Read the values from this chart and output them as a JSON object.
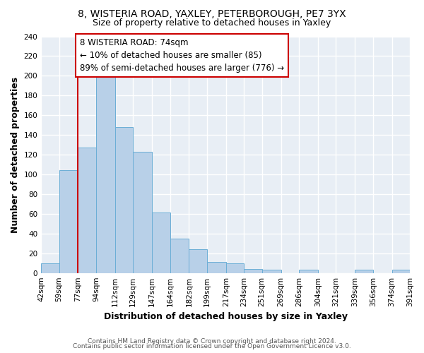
{
  "title1": "8, WISTERIA ROAD, YAXLEY, PETERBOROUGH, PE7 3YX",
  "title2": "Size of property relative to detached houses in Yaxley",
  "xlabel": "Distribution of detached houses by size in Yaxley",
  "ylabel": "Number of detached properties",
  "footer1": "Contains HM Land Registry data © Crown copyright and database right 2024.",
  "footer2": "Contains public sector information licensed under the Open Government Licence v3.0.",
  "annotation_line1": "8 WISTERIA ROAD: 74sqm",
  "annotation_line2": "← 10% of detached houses are smaller (85)",
  "annotation_line3": "89% of semi-detached houses are larger (776) →",
  "bar_edges": [
    42,
    59,
    77,
    94,
    112,
    129,
    147,
    164,
    182,
    199,
    217,
    234,
    251,
    269,
    286,
    304,
    321,
    339,
    356,
    374,
    391
  ],
  "bar_heights": [
    10,
    104,
    127,
    199,
    148,
    123,
    61,
    35,
    24,
    11,
    10,
    4,
    3,
    0,
    3,
    0,
    0,
    3,
    0,
    3
  ],
  "bar_color": "#b8d0e8",
  "bar_edgecolor": "#6baed6",
  "reference_line_x": 77,
  "reference_line_color": "#cc0000",
  "ylim": [
    0,
    240
  ],
  "yticks": [
    0,
    20,
    40,
    60,
    80,
    100,
    120,
    140,
    160,
    180,
    200,
    220,
    240
  ],
  "plot_bg_color": "#e8eef5",
  "fig_bg_color": "#ffffff",
  "grid_color": "#ffffff",
  "annotation_box_color": "#ffffff",
  "annotation_box_edgecolor": "#cc0000",
  "title_fontsize": 10,
  "subtitle_fontsize": 9,
  "axis_label_fontsize": 9,
  "tick_fontsize": 7.5,
  "annotation_fontsize": 8.5,
  "footer_fontsize": 6.5
}
